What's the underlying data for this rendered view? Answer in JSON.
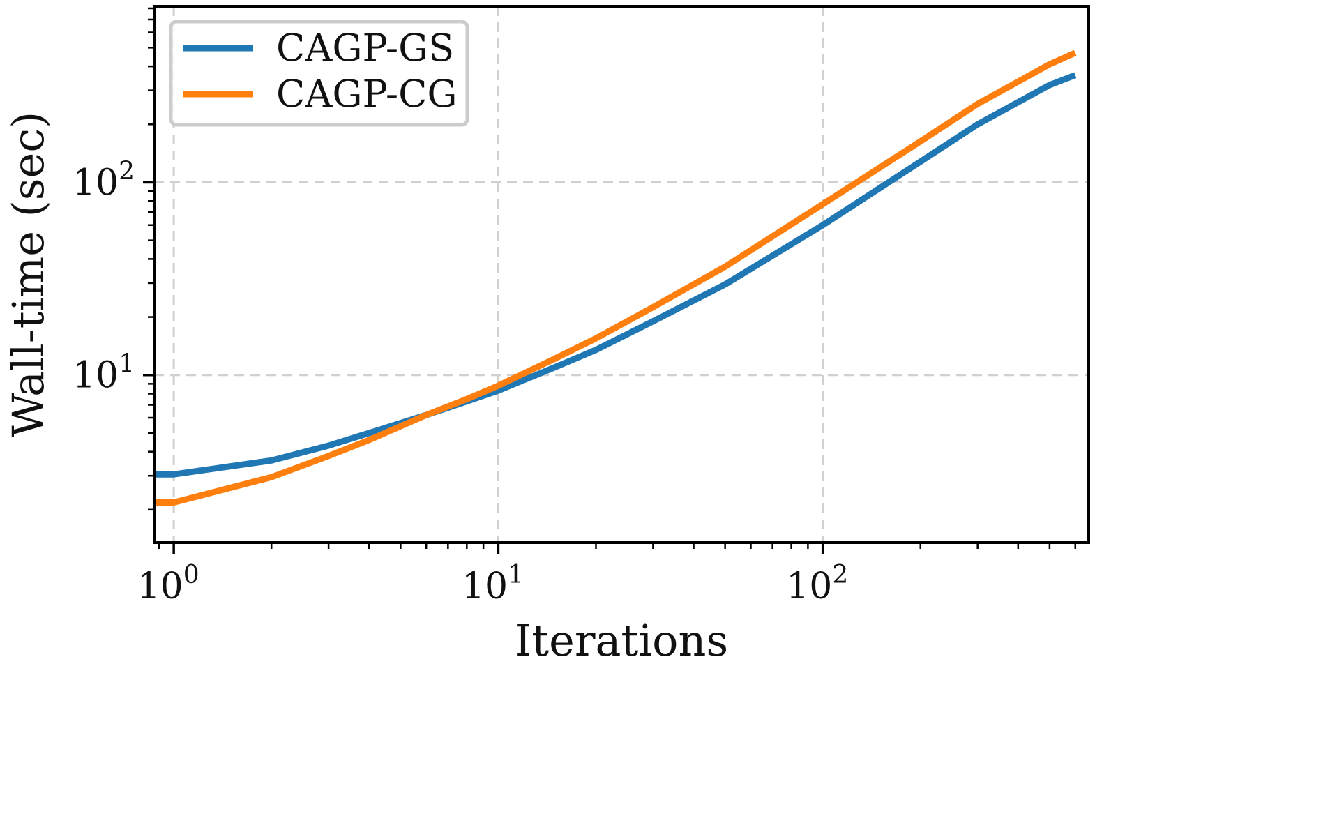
{
  "chart_data": {
    "type": "line",
    "xscale": "log",
    "yscale": "log",
    "xlabel": "Iterations",
    "ylabel": "Wall-time (sec)",
    "xlim": [
      0.87,
      660
    ],
    "ylim": [
      1.35,
      820
    ],
    "grid": true,
    "legend_position": "top-left",
    "x_major_ticks": [
      {
        "value": 1,
        "base": "10",
        "exp": "0"
      },
      {
        "value": 10,
        "base": "10",
        "exp": "1"
      },
      {
        "value": 100,
        "base": "10",
        "exp": "2"
      }
    ],
    "y_major_ticks": [
      {
        "value": 10,
        "base": "10",
        "exp": "1"
      },
      {
        "value": 100,
        "base": "10",
        "exp": "2"
      }
    ],
    "series": [
      {
        "name": "CAGP-GS",
        "color": "#1f77b4",
        "x": [
          0.87,
          1,
          2,
          3,
          4,
          6,
          8,
          10,
          15,
          20,
          30,
          50,
          100,
          200,
          300,
          500,
          600
        ],
        "y": [
          3.05,
          3.05,
          3.6,
          4.3,
          5.0,
          6.2,
          7.3,
          8.3,
          11.0,
          13.5,
          19.0,
          29.5,
          60,
          128,
          200,
          320,
          360
        ]
      },
      {
        "name": "CAGP-CG",
        "color": "#ff7f0e",
        "x": [
          0.87,
          1,
          2,
          3,
          4,
          6,
          8,
          10,
          15,
          20,
          30,
          50,
          100,
          200,
          300,
          500,
          600
        ],
        "y": [
          2.18,
          2.18,
          2.95,
          3.8,
          4.6,
          6.2,
          7.5,
          8.8,
          12.2,
          15.5,
          22.5,
          36.5,
          77,
          163,
          255,
          410,
          470
        ]
      }
    ]
  }
}
